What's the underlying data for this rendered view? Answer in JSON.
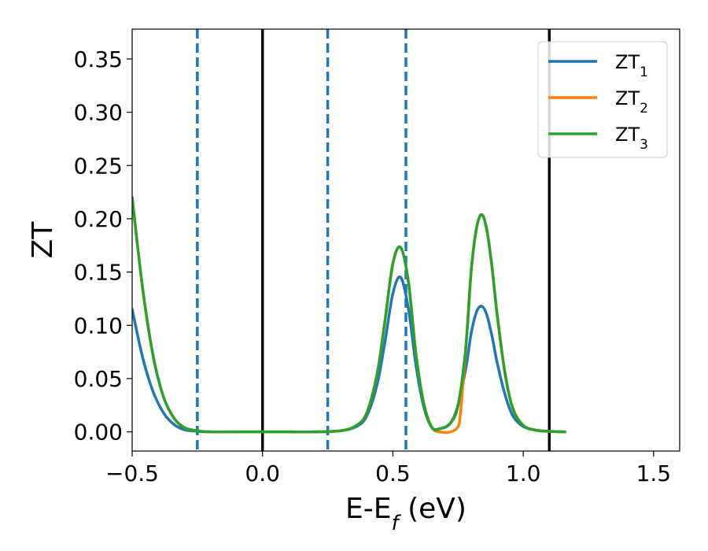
{
  "chart_data": {
    "type": "line",
    "title": "",
    "xlabel": "E-E$_f$ (eV)",
    "ylabel": "ZT",
    "xlim": [
      -0.5,
      1.6
    ],
    "ylim": [
      -0.018,
      0.378
    ],
    "xticks": [
      -0.5,
      0.0,
      0.5,
      1.0,
      1.5
    ],
    "xtick_labels": [
      "−0.5",
      "0.0",
      "0.5",
      "1.0",
      "1.5"
    ],
    "yticks": [
      0.0,
      0.05,
      0.1,
      0.15,
      0.2,
      0.25,
      0.3,
      0.35
    ],
    "ytick_labels": [
      "0.00",
      "0.05",
      "0.10",
      "0.15",
      "0.20",
      "0.25",
      "0.30",
      "0.35"
    ],
    "grid": false,
    "legend_position": "top-right",
    "colors": {
      "zt1": "#1f77b4",
      "zt2": "#ff7f0e",
      "zt3": "#2ca02c",
      "reference": "#000000"
    },
    "reference_lines_solid": [
      0.0,
      1.1
    ],
    "reference_lines_dashed": [
      -0.25,
      0.25,
      0.55
    ],
    "series": [
      {
        "name": "ZT$_1$",
        "color": "#1f77b4",
        "x": [
          -0.5,
          -0.46,
          -0.42,
          -0.38,
          -0.34,
          -0.3,
          -0.25,
          -0.2,
          -0.1,
          0.0,
          0.1,
          0.2,
          0.3,
          0.36,
          0.4,
          0.44,
          0.47,
          0.5,
          0.53,
          0.56,
          0.59,
          0.62,
          0.65,
          0.68,
          0.72,
          0.75,
          0.78,
          0.8,
          0.82,
          0.84,
          0.86,
          0.88,
          0.9,
          0.93,
          0.96,
          1.0,
          1.05,
          1.1,
          1.16
        ],
        "y": [
          0.115,
          0.07,
          0.038,
          0.018,
          0.007,
          0.002,
          0.0005,
          0.0,
          0.0,
          0.0,
          0.0,
          0.0,
          0.001,
          0.005,
          0.015,
          0.045,
          0.085,
          0.13,
          0.145,
          0.115,
          0.06,
          0.022,
          0.004,
          0.003,
          0.008,
          0.025,
          0.06,
          0.092,
          0.112,
          0.118,
          0.11,
          0.09,
          0.065,
          0.035,
          0.015,
          0.005,
          0.0015,
          0.0005,
          0.0
        ]
      },
      {
        "name": "ZT$_2$",
        "color": "#ff7f0e",
        "x": [
          -0.5,
          -0.46,
          -0.42,
          -0.38,
          -0.34,
          -0.3,
          -0.25,
          -0.2,
          -0.1,
          0.0,
          0.1,
          0.2,
          0.3,
          0.36,
          0.4,
          0.44,
          0.47,
          0.5,
          0.53,
          0.56,
          0.59,
          0.62,
          0.65,
          0.68,
          0.72,
          0.75,
          0.76,
          0.78,
          0.8,
          0.82,
          0.84,
          0.86,
          0.88,
          0.9,
          0.93,
          0.96,
          1.0,
          1.05,
          1.1,
          1.16
        ],
        "y": [
          0.22,
          0.135,
          0.072,
          0.033,
          0.013,
          0.004,
          0.001,
          0.0,
          0.0,
          0.0,
          0.0,
          0.0,
          0.001,
          0.006,
          0.018,
          0.055,
          0.105,
          0.158,
          0.173,
          0.14,
          0.07,
          0.025,
          0.004,
          0.0,
          0.0,
          0.005,
          0.02,
          0.08,
          0.15,
          0.19,
          0.204,
          0.19,
          0.155,
          0.11,
          0.055,
          0.022,
          0.006,
          0.0015,
          0.0005,
          0.0
        ]
      },
      {
        "name": "ZT$_3$",
        "color": "#2ca02c",
        "x": [
          -0.5,
          -0.46,
          -0.42,
          -0.38,
          -0.34,
          -0.3,
          -0.25,
          -0.2,
          -0.1,
          0.0,
          0.1,
          0.2,
          0.3,
          0.36,
          0.4,
          0.44,
          0.47,
          0.5,
          0.53,
          0.56,
          0.59,
          0.62,
          0.65,
          0.68,
          0.72,
          0.75,
          0.78,
          0.8,
          0.82,
          0.84,
          0.86,
          0.88,
          0.9,
          0.93,
          0.96,
          1.0,
          1.05,
          1.1,
          1.16
        ],
        "y": [
          0.22,
          0.135,
          0.072,
          0.033,
          0.013,
          0.004,
          0.001,
          0.0,
          0.0,
          0.0,
          0.0,
          0.0,
          0.001,
          0.006,
          0.018,
          0.055,
          0.105,
          0.158,
          0.173,
          0.14,
          0.07,
          0.025,
          0.004,
          0.003,
          0.008,
          0.025,
          0.08,
          0.15,
          0.19,
          0.204,
          0.19,
          0.155,
          0.11,
          0.055,
          0.022,
          0.006,
          0.0015,
          0.0005,
          0.0
        ]
      }
    ]
  }
}
